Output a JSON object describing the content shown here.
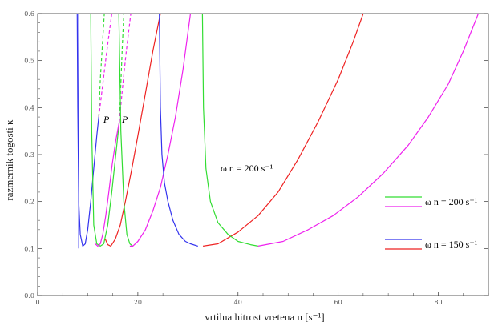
{
  "chart_data": {
    "type": "line",
    "xlabel": "vrtilna hitrost vretena n [s⁻¹]",
    "ylabel": "razmernik togosti κ",
    "xlim": [
      0,
      90
    ],
    "ylim": [
      0,
      0.6
    ],
    "x_ticks": [
      "0",
      "20",
      "40",
      "60",
      "80"
    ],
    "y_ticks": [
      "0.0",
      "0.1",
      "0.2",
      "0.3",
      "0.4",
      "0.5",
      "0.6"
    ],
    "annotations": {
      "curve_label": "ω n = 200 s⁻¹",
      "point_labels": [
        "P",
        "P"
      ]
    },
    "legend": [
      {
        "text": "ω n = 200 s⁻¹",
        "colors": [
          "#33dd33",
          "#ee22ee"
        ]
      },
      {
        "text": "ω n = 150 s⁻¹",
        "colors": [
          "#3333ee",
          "#ee2222"
        ]
      }
    ],
    "colors": {
      "green": "#33dd33",
      "magenta": "#ee22ee",
      "blue": "#3333ee",
      "red": "#ee2222"
    },
    "series": [
      {
        "color": "blue",
        "dashed": false,
        "x": [
          7.9,
          8.0,
          8.2,
          8.5,
          9.0,
          9.5,
          10.0,
          10.6,
          11.2,
          11.8,
          12.2
        ],
        "y": [
          0.6,
          0.4,
          0.2,
          0.13,
          0.105,
          0.11,
          0.14,
          0.2,
          0.27,
          0.34,
          0.38
        ]
      },
      {
        "color": "blue",
        "dashed": false,
        "x": [
          8.2,
          8.2
        ],
        "y": [
          0.6,
          0.1
        ]
      },
      {
        "color": "green",
        "dashed": false,
        "x": [
          10.6,
          10.8,
          11.2,
          11.8,
          12.5,
          13.2,
          14.0,
          14.8,
          15.6,
          16.3
        ],
        "y": [
          0.6,
          0.35,
          0.15,
          0.11,
          0.105,
          0.11,
          0.15,
          0.22,
          0.3,
          0.37
        ]
      },
      {
        "color": "green",
        "dashed": true,
        "x": [
          12.2,
          12.5,
          12.9,
          13.3
        ],
        "y": [
          0.38,
          0.46,
          0.53,
          0.6
        ]
      },
      {
        "color": "green",
        "dashed": true,
        "x": [
          16.3,
          16.6,
          16.9,
          17.2
        ],
        "y": [
          0.37,
          0.45,
          0.53,
          0.6
        ]
      },
      {
        "color": "magenta",
        "dashed": false,
        "x": [
          11.5,
          12.0,
          12.5,
          13.0,
          13.6,
          14.2,
          14.9,
          15.6,
          16.3
        ],
        "y": [
          0.11,
          0.105,
          0.11,
          0.13,
          0.17,
          0.22,
          0.28,
          0.33,
          0.37
        ]
      },
      {
        "color": "magenta",
        "dashed": true,
        "x": [
          12.2,
          13.0,
          13.8,
          14.8
        ],
        "y": [
          0.38,
          0.45,
          0.52,
          0.6
        ]
      },
      {
        "color": "magenta",
        "dashed": true,
        "x": [
          16.3,
          17.0,
          17.7,
          18.6
        ],
        "y": [
          0.37,
          0.45,
          0.52,
          0.6
        ]
      },
      {
        "color": "red",
        "dashed": false,
        "x": [
          13.5,
          14.0,
          14.6,
          15.5,
          16.5,
          17.5,
          18.8,
          20.0,
          21.5,
          23.0,
          24.5
        ],
        "y": [
          0.12,
          0.108,
          0.105,
          0.12,
          0.15,
          0.2,
          0.27,
          0.34,
          0.43,
          0.52,
          0.6
        ]
      },
      {
        "color": "green",
        "dashed": false,
        "x": [
          16.2,
          16.6,
          17.2,
          17.8,
          18.4,
          19.0
        ],
        "y": [
          0.6,
          0.35,
          0.2,
          0.13,
          0.11,
          0.105
        ]
      },
      {
        "color": "magenta",
        "dashed": false,
        "x": [
          18.4,
          19.0,
          20.0,
          21.5,
          23.0,
          24.5,
          26.0,
          27.5,
          29.0,
          30.5
        ],
        "y": [
          0.105,
          0.105,
          0.115,
          0.14,
          0.18,
          0.23,
          0.3,
          0.38,
          0.48,
          0.6
        ]
      },
      {
        "color": "blue",
        "dashed": false,
        "x": [
          24.3,
          24.5,
          24.8,
          25.3,
          26.0,
          27.0,
          28.2,
          29.5,
          30.5,
          32.0
        ],
        "y": [
          0.6,
          0.4,
          0.3,
          0.24,
          0.2,
          0.16,
          0.13,
          0.115,
          0.11,
          0.105
        ]
      },
      {
        "color": "red",
        "dashed": false,
        "x": [
          33.0,
          36.0,
          40.0,
          44.0,
          48.0,
          52.0,
          56.0,
          60.0,
          63.0,
          65.0
        ],
        "y": [
          0.105,
          0.11,
          0.135,
          0.17,
          0.22,
          0.29,
          0.37,
          0.46,
          0.54,
          0.6
        ]
      },
      {
        "color": "green",
        "dashed": false,
        "x": [
          32.9,
          33.1,
          33.6,
          34.5,
          36.0,
          38.0,
          40.0,
          42.5,
          44.0
        ],
        "y": [
          0.6,
          0.4,
          0.27,
          0.2,
          0.155,
          0.13,
          0.115,
          0.108,
          0.105
        ]
      },
      {
        "color": "magenta",
        "dashed": false,
        "x": [
          44.0,
          49.0,
          54.0,
          59.0,
          64.0,
          69.0,
          74.0,
          78.0,
          82.0,
          85.0,
          88.0
        ],
        "y": [
          0.105,
          0.115,
          0.14,
          0.17,
          0.21,
          0.26,
          0.32,
          0.38,
          0.45,
          0.52,
          0.6
        ]
      }
    ]
  }
}
